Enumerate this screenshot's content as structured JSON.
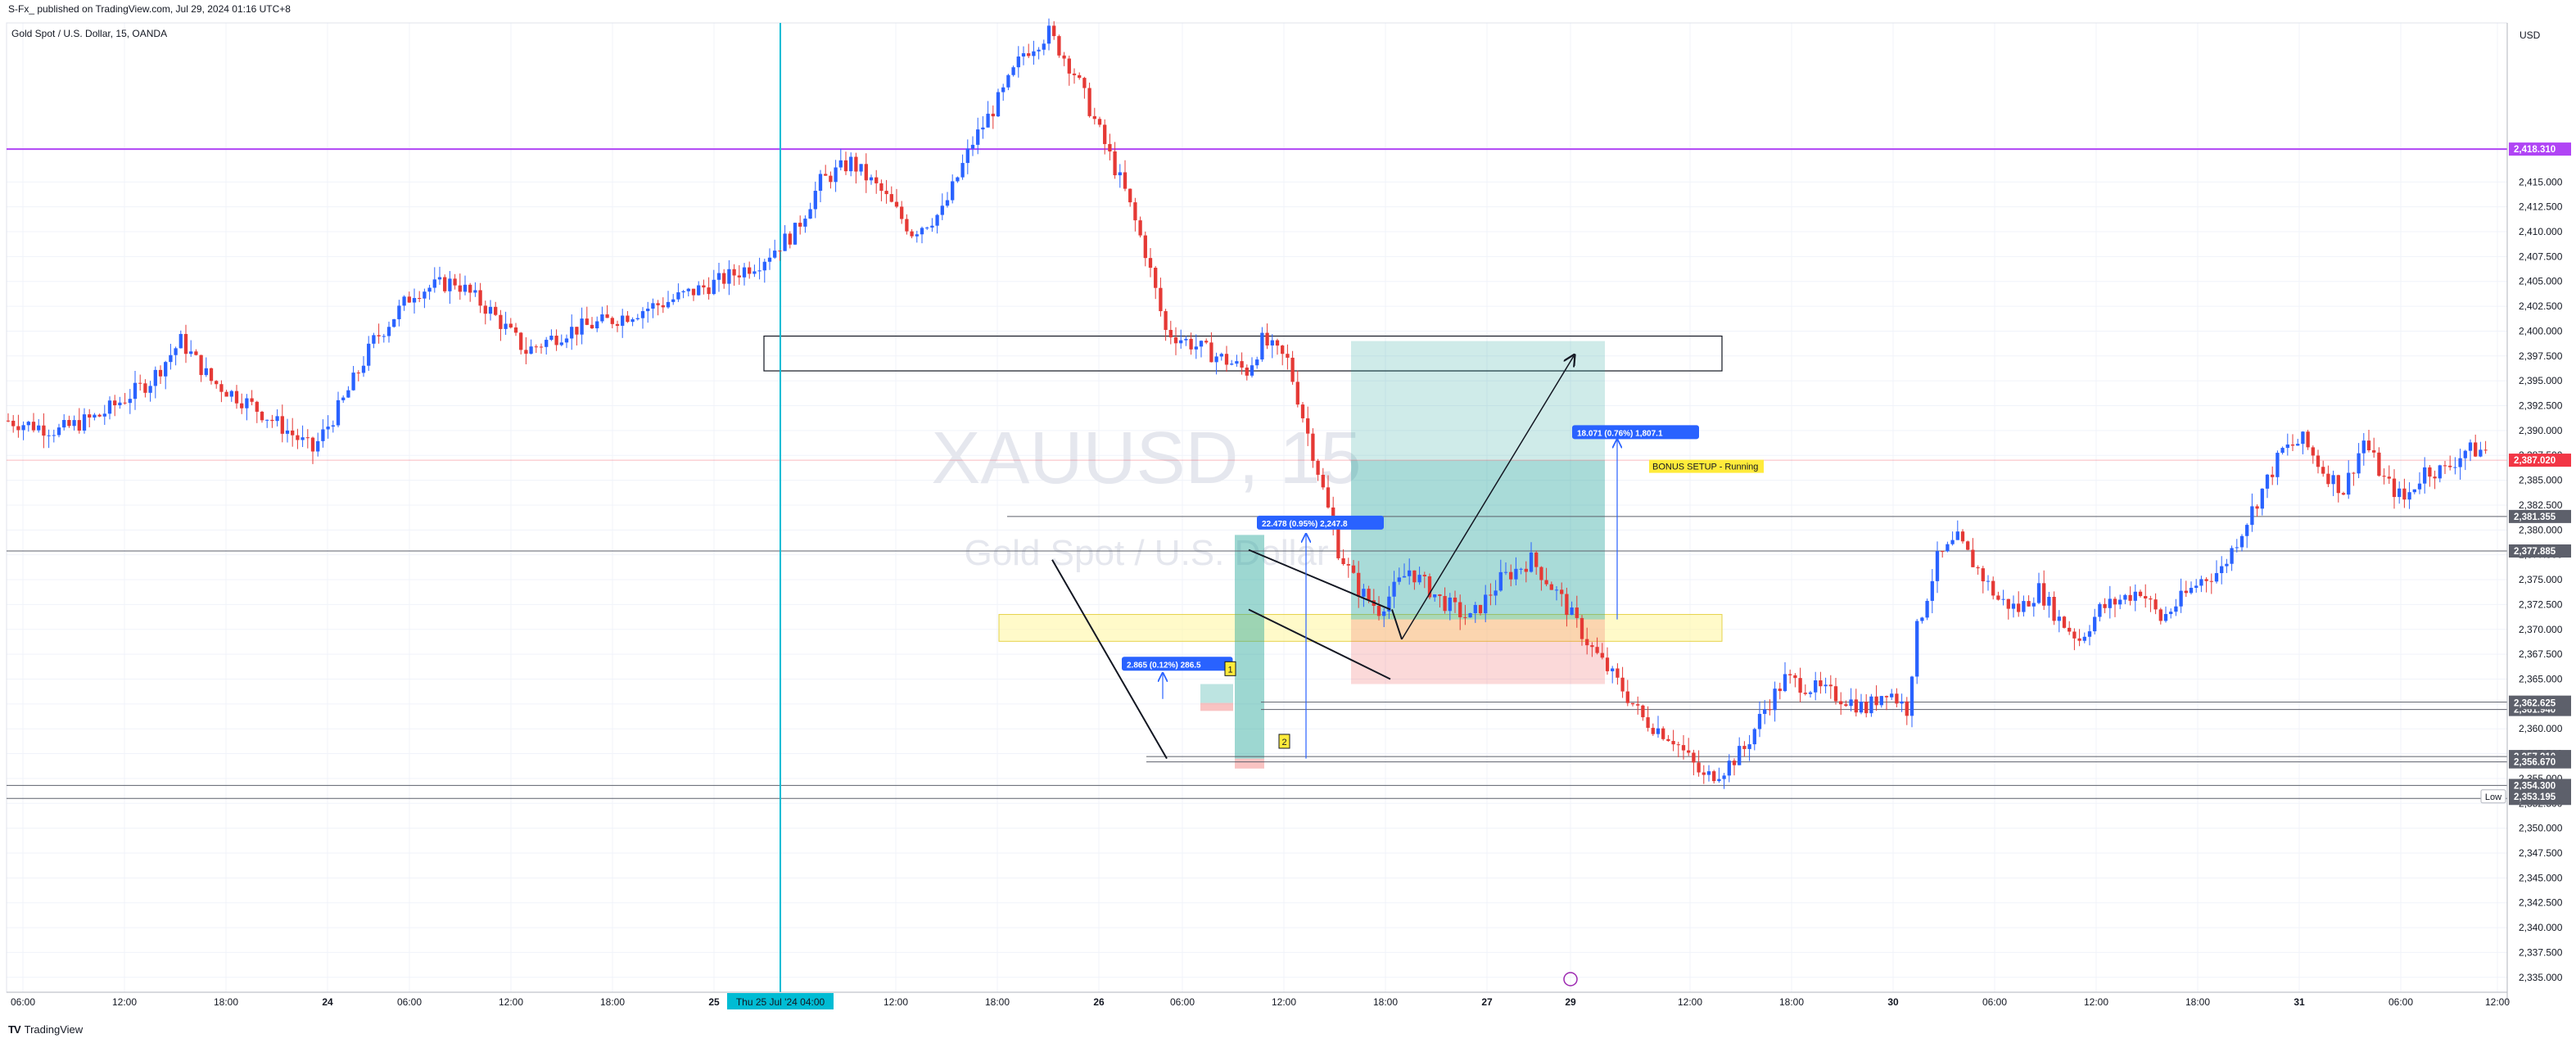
{
  "header": {
    "publisher_line": "S-Fx_ published on TradingView.com, Jul 29, 2024 01:16 UTC+8",
    "symbol_line": "Gold Spot / U.S. Dollar, 15, OANDA"
  },
  "watermark": {
    "symbol": "XAUUSD, 15",
    "name": "Gold Spot / U.S. Dollar"
  },
  "footer": {
    "brand": "TradingView"
  },
  "colors": {
    "up": "#2962ff",
    "down": "#e53935",
    "resistance_line": "#b044f5",
    "current_price": "#f23645",
    "level_label": "#5d606b",
    "session_line": "#00bcd4",
    "zone_yellow": "#fff59d",
    "profit": "#26a69a",
    "loss": "#ef5350"
  },
  "chart_data": {
    "type": "candlestick",
    "symbol": "XAUUSD",
    "timeframe": "15",
    "axis_currency": "USD",
    "ylim": [
      2333.5,
      2431
    ],
    "grid": true,
    "x_tick_labels": [
      "06:00",
      "12:00",
      "18:00",
      "24",
      "06:00",
      "12:00",
      "18:00",
      "25",
      "12:00",
      "18:00",
      "26",
      "06:00",
      "12:00",
      "18:00",
      "27",
      "29",
      "12:00",
      "18:00",
      "30",
      "06:00",
      "12:00",
      "18:00",
      "31",
      "06:00",
      "12:00"
    ],
    "crosshair_date_label": "Thu 25 Jul '24   04:00",
    "y_tick_values": [
      2335,
      2337.5,
      2340,
      2342.5,
      2345,
      2347.5,
      2350,
      2352.5,
      2355,
      2357.5,
      2360,
      2362.5,
      2365,
      2367.5,
      2370,
      2372.5,
      2375,
      2377.5,
      2380,
      2382.5,
      2385,
      2387.5,
      2390,
      2392.5,
      2395,
      2397.5,
      2400,
      2402.5,
      2405,
      2407.5,
      2410,
      2412.5,
      2415
    ],
    "y_tick_labels": [
      "2,335.000",
      "2,337.500",
      "2,340.000",
      "2,342.500",
      "2,345.000",
      "2,347.500",
      "2,350.000",
      "2,352.500",
      "2,355.000",
      "2,357.500",
      "2,360.000",
      "2,362.500",
      "2,365.000",
      "2,367.500",
      "2,370.000",
      "2,372.500",
      "2,375.000",
      "2,377.500",
      "2,380.000",
      "2,382.500",
      "2,385.000",
      "2,387.500",
      "2,390.000",
      "2,392.500",
      "2,395.000",
      "2,397.500",
      "2,400.000",
      "2,402.500",
      "2,405.000",
      "2,407.500",
      "2,410.000",
      "2,412.500",
      "2,415.000"
    ],
    "horizontal_levels": [
      {
        "price": 2418.31,
        "label": "2,418.310",
        "kind": "resistance"
      },
      {
        "price": 2381.355,
        "label": "2,381.355",
        "kind": "level"
      },
      {
        "price": 2377.885,
        "label": "2,377.885",
        "kind": "level"
      },
      {
        "price": 2362.68,
        "label": "2,362.680",
        "kind": "level"
      },
      {
        "price": 2361.94,
        "label": "2,361.940",
        "kind": "level"
      },
      {
        "price": 2357.21,
        "label": "2,357.210",
        "kind": "level"
      },
      {
        "price": 2356.67,
        "label": "2,356.670",
        "kind": "level"
      },
      {
        "price": 2354.3,
        "label": "2,354.300",
        "kind": "level"
      },
      {
        "price": 2352.995,
        "label": "2,352.995",
        "kind": "level"
      }
    ],
    "price_tags": [
      {
        "price": 2362.625,
        "label": "2,362.625"
      },
      {
        "price": 2353.195,
        "label": "2,353.195"
      }
    ],
    "current_price": {
      "price": 2387.02,
      "label": "2,387.020"
    },
    "low_marker": "Low",
    "price_path": [
      [
        0,
        2391
      ],
      [
        10,
        2390
      ],
      [
        18,
        2391.5
      ],
      [
        28,
        2395
      ],
      [
        34,
        2399
      ],
      [
        40,
        2395
      ],
      [
        48,
        2392.5
      ],
      [
        55,
        2390
      ],
      [
        60,
        2388
      ],
      [
        66,
        2393
      ],
      [
        72,
        2399
      ],
      [
        80,
        2404
      ],
      [
        88,
        2405
      ],
      [
        95,
        2402
      ],
      [
        102,
        2398
      ],
      [
        110,
        2400
      ],
      [
        118,
        2401
      ],
      [
        124,
        2402
      ],
      [
        130,
        2403
      ],
      [
        140,
        2405
      ],
      [
        148,
        2407
      ],
      [
        155,
        2410
      ],
      [
        160,
        2415
      ],
      [
        166,
        2417
      ],
      [
        172,
        2414
      ],
      [
        178,
        2410
      ],
      [
        184,
        2412
      ],
      [
        190,
        2419
      ],
      [
        196,
        2424
      ],
      [
        200,
        2428
      ],
      [
        205,
        2430
      ],
      [
        210,
        2426
      ],
      [
        215,
        2420
      ],
      [
        220,
        2414
      ],
      [
        224,
        2408
      ],
      [
        228,
        2400
      ],
      [
        232,
        2399
      ],
      [
        236,
        2398
      ],
      [
        240,
        2397
      ],
      [
        244,
        2396
      ],
      [
        247,
        2399
      ],
      [
        252,
        2397
      ],
      [
        258,
        2386
      ],
      [
        262,
        2378
      ],
      [
        266,
        2374
      ],
      [
        270,
        2372
      ],
      [
        276,
        2376
      ],
      [
        282,
        2373
      ],
      [
        288,
        2371
      ],
      [
        294,
        2375
      ],
      [
        300,
        2377
      ],
      [
        306,
        2373
      ],
      [
        312,
        2368
      ],
      [
        318,
        2364
      ],
      [
        322,
        2361
      ],
      [
        328,
        2359
      ],
      [
        334,
        2355
      ],
      [
        338,
        2356
      ],
      [
        342,
        2358
      ],
      [
        346,
        2362
      ],
      [
        350,
        2365
      ],
      [
        356,
        2364
      ],
      [
        362,
        2363
      ],
      [
        366,
        2362
      ],
      [
        370,
        2364
      ],
      [
        374,
        2362
      ],
      [
        376,
        2370
      ],
      [
        380,
        2377
      ],
      [
        384,
        2379
      ],
      [
        388,
        2376
      ],
      [
        392,
        2373
      ],
      [
        396,
        2372
      ],
      [
        400,
        2374
      ],
      [
        404,
        2371
      ],
      [
        408,
        2369
      ],
      [
        412,
        2372
      ],
      [
        416,
        2373
      ],
      [
        420,
        2374
      ],
      [
        424,
        2371
      ],
      [
        428,
        2373
      ],
      [
        432,
        2375
      ],
      [
        436,
        2376
      ],
      [
        440,
        2380
      ],
      [
        444,
        2384
      ],
      [
        448,
        2388
      ],
      [
        452,
        2389
      ],
      [
        456,
        2386
      ],
      [
        460,
        2384
      ],
      [
        464,
        2389
      ],
      [
        468,
        2385
      ],
      [
        472,
        2383
      ],
      [
        476,
        2386
      ],
      [
        480,
        2386
      ],
      [
        484,
        2388
      ],
      [
        488,
        2388
      ]
    ],
    "trade_zones": [
      {
        "kind": "resistance-box",
        "price_top": 2399.5,
        "price_bottom": 2396
      },
      {
        "kind": "demand-zone",
        "price_top": 2371.5,
        "price_bottom": 2368.8
      },
      {
        "kind": "long-position",
        "entry": 2371,
        "target": 2399,
        "stop": 2364.5
      }
    ],
    "measure_labels": [
      {
        "text": "2.865 (0.12%) 286.5"
      },
      {
        "text": "22.478 (0.95%) 2,247.8"
      },
      {
        "text": "18.071 (0.76%) 1,807.1"
      }
    ],
    "wave_markers": [
      "1",
      "2"
    ],
    "annotation": "BONUS SETUP - Running"
  }
}
